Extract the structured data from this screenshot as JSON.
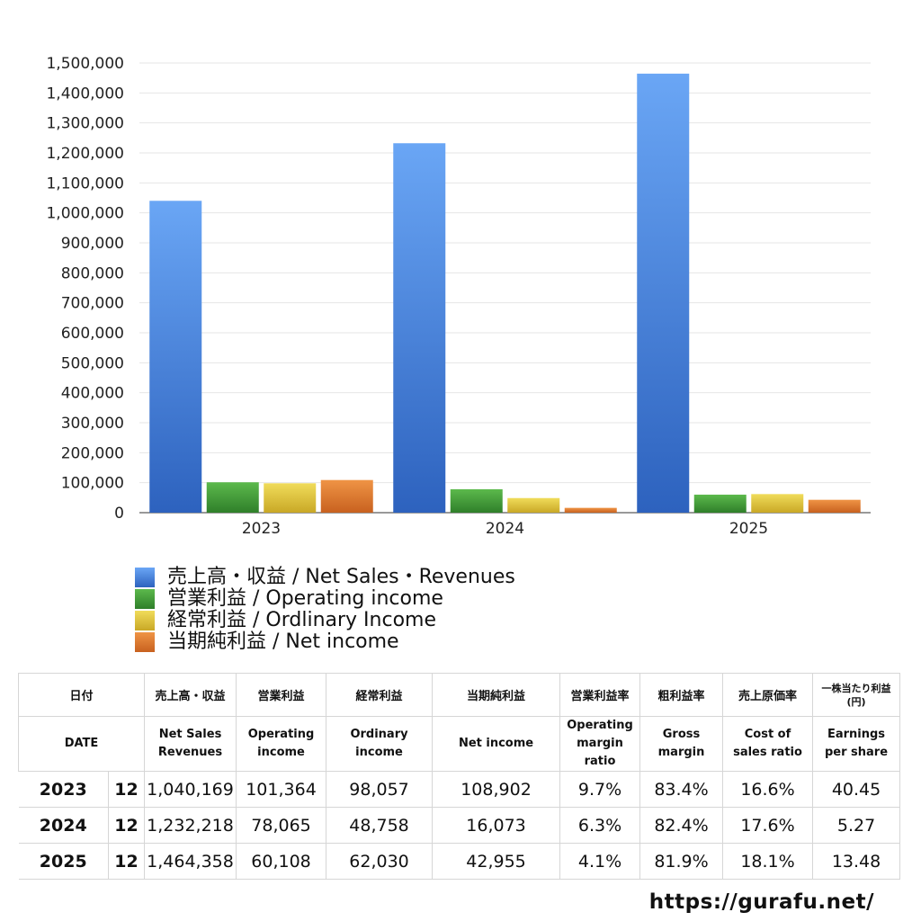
{
  "chart_data": {
    "type": "bar",
    "categories": [
      "2023",
      "2024",
      "2025"
    ],
    "ylim": [
      0,
      1500000
    ],
    "y_ticks": [
      "0",
      "100,000",
      "200,000",
      "300,000",
      "400,000",
      "500,000",
      "600,000",
      "700,000",
      "800,000",
      "900,000",
      "1,000,000",
      "1,100,000",
      "1,200,000",
      "1,300,000",
      "1,400,000",
      "1,500,000"
    ],
    "grid": true,
    "legend_position": "bottom",
    "series": [
      {
        "name": "売上高・収益 / Net Sales・Revenues",
        "values": [
          1040169,
          1232218,
          1464358
        ],
        "color": "#4a86e8"
      },
      {
        "name": "営業利益 / Operating income",
        "values": [
          101364,
          78065,
          60108
        ],
        "color": "#4aa23e"
      },
      {
        "name": "経常利益 / Ordlinary Income",
        "values": [
          98057,
          48758,
          62030
        ],
        "color": "#e2c93a"
      },
      {
        "name": "当期純利益 / Net income",
        "values": [
          108902,
          16073,
          42955
        ],
        "color": "#e07f2f"
      }
    ]
  },
  "table": {
    "header_jp": [
      "日付",
      "売上高・収益",
      "営業利益",
      "経常利益",
      "当期純利益",
      "営業利益率",
      "粗利益率",
      "売上原価率",
      "一株当たり利益\n(円)"
    ],
    "header_en": [
      "DATE",
      "Net Sales\nRevenues",
      "Operating\nincome",
      "Ordinary\nincome",
      "Net income",
      "Operating\nmargin\nratio",
      "Gross\nmargin",
      "Cost of\nsales ratio",
      "Earnings\nper share"
    ],
    "rows": [
      {
        "year": "2023",
        "month": "12",
        "cells": [
          "1,040,169",
          "101,364",
          "98,057",
          "108,902",
          "9.7%",
          "83.4%",
          "16.6%",
          "40.45"
        ]
      },
      {
        "year": "2024",
        "month": "12",
        "cells": [
          "1,232,218",
          "78,065",
          "48,758",
          "16,073",
          "6.3%",
          "82.4%",
          "17.6%",
          "5.27"
        ]
      },
      {
        "year": "2025",
        "month": "12",
        "cells": [
          "1,464,358",
          "60,108",
          "62,030",
          "42,955",
          "4.1%",
          "81.9%",
          "18.1%",
          "13.48"
        ]
      }
    ]
  },
  "credit": "https://gurafu.net/"
}
